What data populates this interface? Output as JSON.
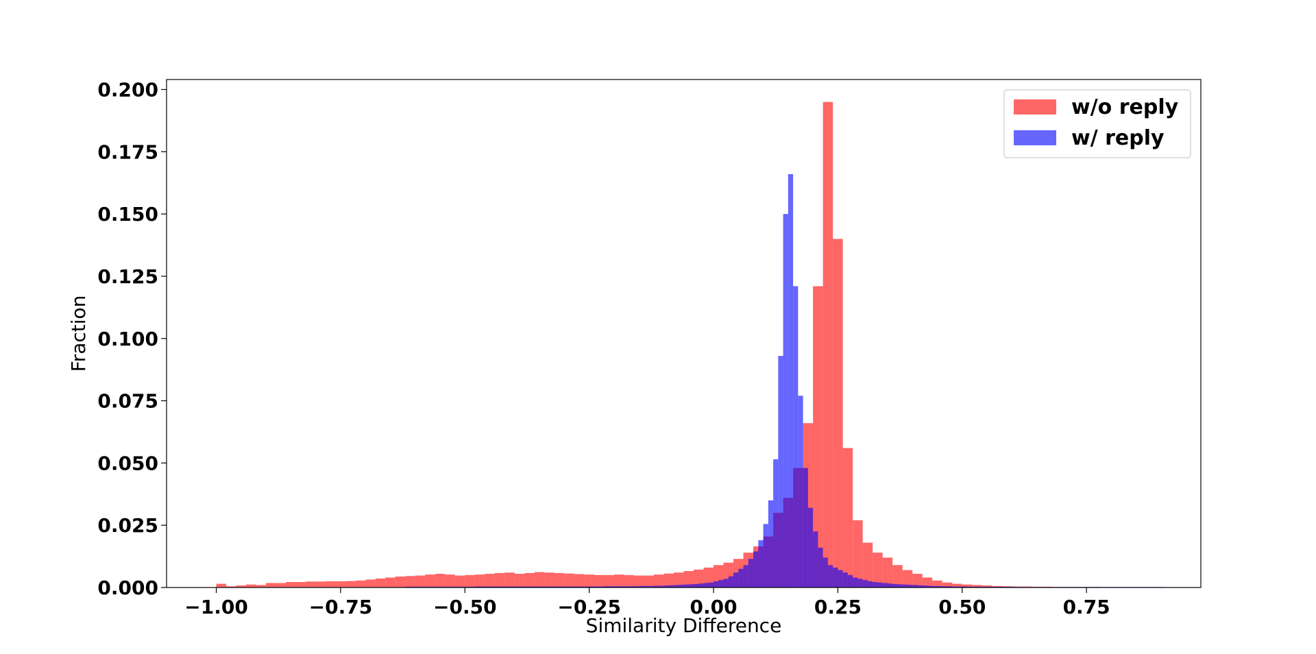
{
  "chart_data": {
    "type": "bar",
    "title": "",
    "xlabel": "Similarity Difference",
    "ylabel": "Fraction",
    "xlim": [
      -1.1,
      0.98
    ],
    "ylim": [
      0,
      0.2
    ],
    "xticks": [
      -1.0,
      -0.75,
      -0.5,
      -0.25,
      0.0,
      0.25,
      0.5,
      0.75
    ],
    "xtick_labels": [
      "−1.00",
      "−0.75",
      "−0.50",
      "−0.25",
      "0.00",
      "0.25",
      "0.50",
      "0.75"
    ],
    "yticks": [
      0,
      0.025,
      0.05,
      0.075,
      0.1,
      0.125,
      0.15,
      0.175,
      0.2
    ],
    "ytick_labels": [
      "0.000",
      "0.025",
      "0.050",
      "0.075",
      "0.100",
      "0.125",
      "0.150",
      "0.175",
      "0.200"
    ],
    "grid": false,
    "legend_position": "top-right",
    "series": [
      {
        "name": "w/o reply",
        "color": "#ff0000",
        "opacity": 0.6,
        "bin_start": -1.0,
        "bin_width": 0.02,
        "values": [
          0.0015,
          0.0005,
          0.0008,
          0.0012,
          0.001,
          0.0018,
          0.0018,
          0.0022,
          0.0022,
          0.0024,
          0.0024,
          0.0025,
          0.0025,
          0.0026,
          0.0028,
          0.0032,
          0.0036,
          0.004,
          0.0044,
          0.0046,
          0.0048,
          0.0052,
          0.0055,
          0.0052,
          0.0048,
          0.005,
          0.0052,
          0.0055,
          0.0058,
          0.006,
          0.0055,
          0.0058,
          0.0062,
          0.006,
          0.0058,
          0.0056,
          0.0054,
          0.0052,
          0.005,
          0.005,
          0.0052,
          0.005,
          0.0048,
          0.0048,
          0.0052,
          0.0056,
          0.006,
          0.0066,
          0.0072,
          0.008,
          0.009,
          0.01,
          0.0115,
          0.014,
          0.0165,
          0.0205,
          0.03,
          0.036,
          0.048,
          0.066,
          0.121,
          0.195,
          0.14,
          0.056,
          0.027,
          0.018,
          0.014,
          0.012,
          0.009,
          0.007,
          0.0055,
          0.004,
          0.0028,
          0.002,
          0.0015,
          0.0012,
          0.001,
          0.0008,
          0.0006,
          0.0005,
          0.0004,
          0.0004,
          0.0003,
          0.0003,
          0.0002,
          0.0002,
          0.0002,
          0.0002,
          0.0002,
          0.0001,
          0.0001,
          0.0001,
          0.0001,
          0.0001,
          0.0001,
          0.0001,
          0.0001,
          0.0001,
          0.0001,
          0.0001,
          0.0001,
          0.0001,
          0.0001,
          0.0001,
          0.0001,
          0.0001,
          0.0001,
          0.0001,
          0.0001,
          0.0001,
          0.0001,
          0.0001,
          0.0001,
          0.0001,
          0.0001,
          0.0001,
          0.0001,
          0.0001,
          0.0001,
          0.0001,
          0.0001,
          0.0001,
          0.0001,
          0.0001,
          0.0001,
          0.0001,
          0.0001,
          0.0001,
          0.0001,
          0.0001,
          0.0001,
          0.0001,
          0.0001,
          0.0001,
          0.0001,
          0.0001,
          0.0001,
          0.0001,
          0.0001,
          0.0001,
          0.0001,
          0.0001,
          0.0001,
          0.0001,
          0.0001,
          0.0001,
          0.0001,
          0.0001,
          0.0001,
          0.0001,
          0.0001,
          0.0001,
          0.0001,
          0.0001,
          0.0001,
          0.0001,
          0.0001,
          0.0001,
          0.0001,
          0.0001,
          0.0001,
          0.0001,
          0.0001,
          0.0001,
          0.0001,
          0.0001,
          0.0001,
          0.0001,
          0.0001,
          0.0001
        ]
      },
      {
        "name": "w/ reply",
        "color": "#0000ff",
        "opacity": 0.6,
        "bin_start": -0.62,
        "bin_width": 0.01,
        "values": [
          0.0003,
          0.0003,
          0.0003,
          0.0003,
          0.0003,
          0.0003,
          0.0003,
          0.0003,
          0.0003,
          0.0003,
          0.0003,
          0.0003,
          0.0003,
          0.0003,
          0.0004,
          0.0004,
          0.0004,
          0.0004,
          0.0004,
          0.0004,
          0.0004,
          0.0004,
          0.0004,
          0.0004,
          0.0004,
          0.0004,
          0.0004,
          0.0004,
          0.0004,
          0.0004,
          0.0004,
          0.0004,
          0.0004,
          0.0004,
          0.0004,
          0.0004,
          0.0004,
          0.0004,
          0.0004,
          0.0004,
          0.0005,
          0.0005,
          0.0005,
          0.0005,
          0.0005,
          0.0005,
          0.0005,
          0.0006,
          0.0006,
          0.0006,
          0.0007,
          0.0007,
          0.0008,
          0.0009,
          0.001,
          0.0011,
          0.0012,
          0.0013,
          0.0014,
          0.0016,
          0.0018,
          0.002,
          0.0025,
          0.003,
          0.0035,
          0.0045,
          0.006,
          0.0075,
          0.009,
          0.0115,
          0.0145,
          0.019,
          0.0255,
          0.035,
          0.0515,
          0.093,
          0.15,
          0.166,
          0.121,
          0.077,
          0.048,
          0.032,
          0.0225,
          0.016,
          0.012,
          0.009,
          0.008,
          0.007,
          0.006,
          0.005,
          0.004,
          0.0035,
          0.003,
          0.0025,
          0.0022,
          0.002,
          0.0018,
          0.0016,
          0.0014,
          0.0013,
          0.0012,
          0.0011,
          0.001,
          0.0009,
          0.0008,
          0.0007,
          0.0006,
          0.0006,
          0.0005,
          0.0005,
          0.0004,
          0.0004,
          0.0004,
          0.0003,
          0.0003,
          0.0003,
          0.0003,
          0.0003,
          0.0003,
          0.0003,
          0.0003,
          0.0003,
          0.0003,
          0.0002,
          0.0002,
          0.0002,
          0.0002,
          0.0002,
          0.0002,
          0.0002,
          0.0002,
          0.0002,
          0.0002,
          0.0002,
          0.0002,
          0.0002,
          0.0002,
          0.0002,
          0.0002,
          0.0002,
          0.0002,
          0.0002,
          0.0002,
          0.0002,
          0.0002,
          0.0002,
          0.0002,
          0.0002,
          0.0002,
          0.0002,
          0.0002,
          0.0002,
          0.0002
        ]
      }
    ]
  }
}
